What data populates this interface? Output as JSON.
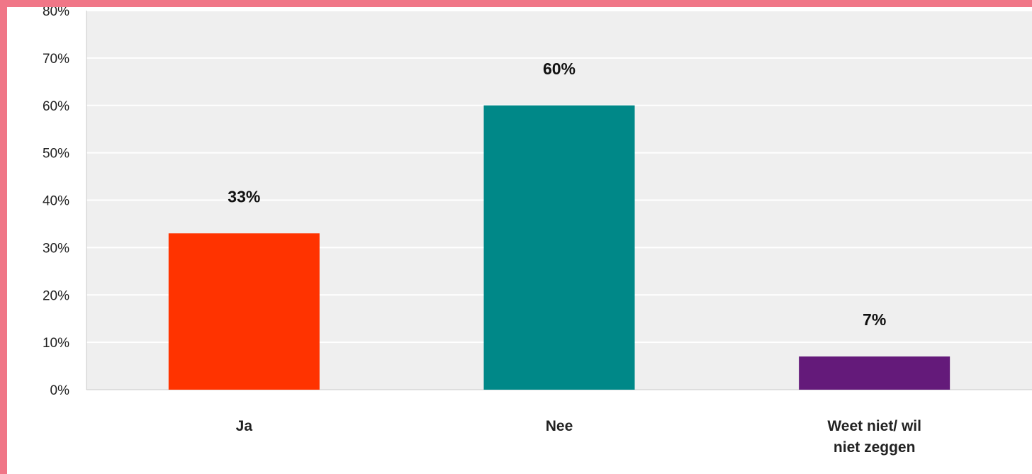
{
  "chart_data": {
    "type": "bar",
    "title": "",
    "xlabel": "",
    "ylabel": "",
    "categories": [
      "Ja",
      "Nee",
      "Weet niet/ wil niet zeggen"
    ],
    "category_lines": [
      [
        "Ja"
      ],
      [
        "Nee"
      ],
      [
        "Weet niet/ wil",
        "niet zeggen"
      ]
    ],
    "values": [
      33,
      60,
      7
    ],
    "value_labels": [
      "33%",
      "60%",
      "7%"
    ],
    "bar_colors": [
      "#ff3300",
      "#008888",
      "#641a7a"
    ],
    "ylim": [
      0,
      80
    ],
    "yticks": [
      0,
      10,
      20,
      30,
      40,
      50,
      60,
      70,
      80
    ],
    "ytick_labels": [
      "0%",
      "10%",
      "20%",
      "30%",
      "40%",
      "50%",
      "60%",
      "70%",
      "80%"
    ],
    "grid": true,
    "legend": "none",
    "plot_background": "#efefef"
  }
}
